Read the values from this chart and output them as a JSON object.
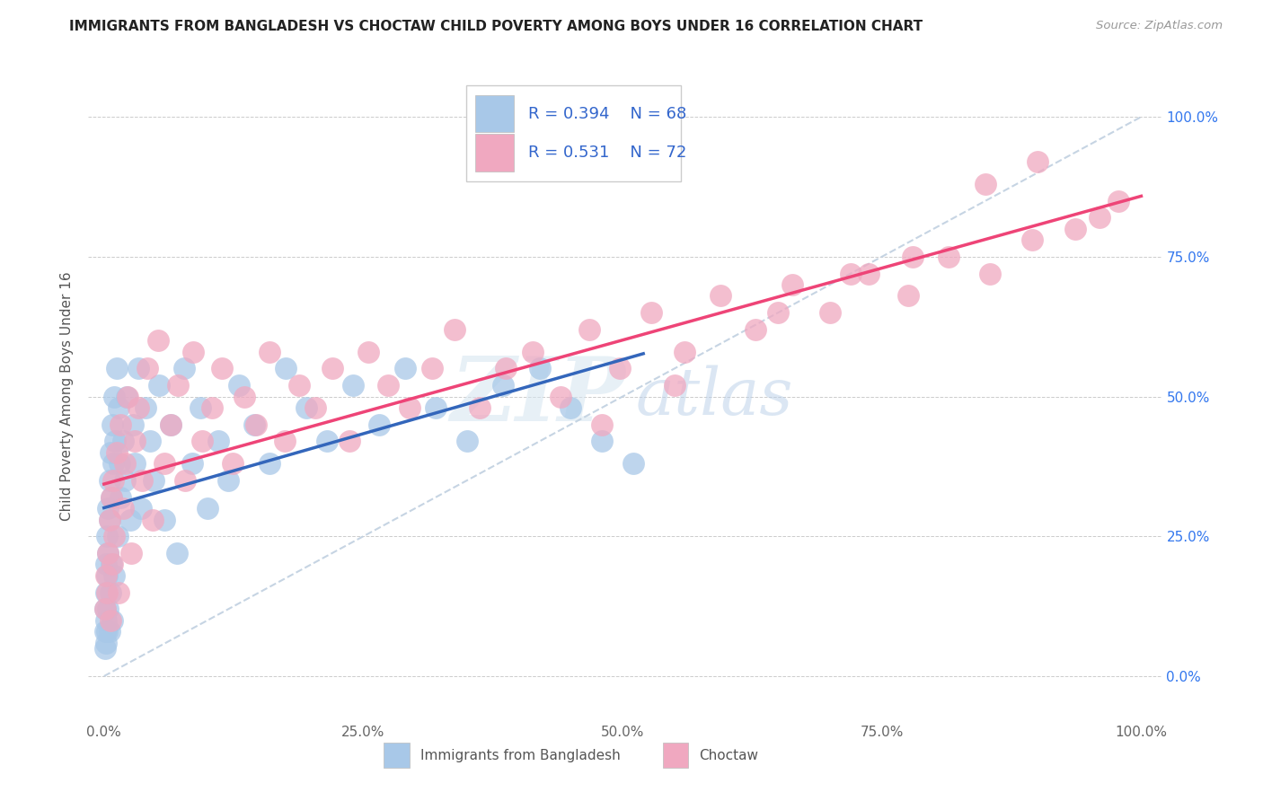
{
  "title": "IMMIGRANTS FROM BANGLADESH VS CHOCTAW CHILD POVERTY AMONG BOYS UNDER 16 CORRELATION CHART",
  "source": "Source: ZipAtlas.com",
  "ylabel": "Child Poverty Among Boys Under 16",
  "xlim": [
    -0.015,
    1.02
  ],
  "ylim": [
    -0.08,
    1.08
  ],
  "xtick_positions": [
    0.0,
    0.25,
    0.5,
    0.75,
    1.0
  ],
  "xticklabels": [
    "0.0%",
    "25.0%",
    "50.0%",
    "75.0%",
    "100.0%"
  ],
  "ytick_positions": [
    0.0,
    0.25,
    0.5,
    0.75,
    1.0
  ],
  "ytick_labels_right": [
    "0.0%",
    "25.0%",
    "50.0%",
    "75.0%",
    "100.0%"
  ],
  "bangladesh_color": "#a8c8e8",
  "choctaw_color": "#f0a8c0",
  "bangladesh_line_color": "#3366bb",
  "choctaw_line_color": "#ee4477",
  "diagonal_color": "#c0d0e0",
  "R_bangladesh": 0.394,
  "N_bangladesh": 68,
  "R_choctaw": 0.531,
  "N_choctaw": 72,
  "legend_label_1": "Immigrants from Bangladesh",
  "legend_label_2": "Choctaw",
  "watermark_zip": "ZIP",
  "watermark_atlas": "atlas",
  "background_color": "#ffffff",
  "bangladesh_x": [
    0.001,
    0.001,
    0.001,
    0.002,
    0.002,
    0.002,
    0.002,
    0.003,
    0.003,
    0.003,
    0.004,
    0.004,
    0.004,
    0.005,
    0.005,
    0.005,
    0.006,
    0.006,
    0.007,
    0.007,
    0.008,
    0.008,
    0.009,
    0.01,
    0.01,
    0.011,
    0.012,
    0.013,
    0.014,
    0.015,
    0.016,
    0.018,
    0.02,
    0.022,
    0.025,
    0.028,
    0.03,
    0.033,
    0.036,
    0.04,
    0.044,
    0.048,
    0.053,
    0.058,
    0.064,
    0.07,
    0.077,
    0.085,
    0.093,
    0.1,
    0.11,
    0.12,
    0.13,
    0.145,
    0.16,
    0.175,
    0.195,
    0.215,
    0.24,
    0.265,
    0.29,
    0.32,
    0.35,
    0.385,
    0.42,
    0.45,
    0.48,
    0.51
  ],
  "bangladesh_y": [
    0.08,
    0.12,
    0.05,
    0.15,
    0.1,
    0.2,
    0.06,
    0.18,
    0.25,
    0.08,
    0.3,
    0.12,
    0.22,
    0.35,
    0.08,
    0.28,
    0.4,
    0.15,
    0.32,
    0.2,
    0.1,
    0.45,
    0.38,
    0.5,
    0.18,
    0.42,
    0.55,
    0.25,
    0.48,
    0.38,
    0.32,
    0.42,
    0.35,
    0.5,
    0.28,
    0.45,
    0.38,
    0.55,
    0.3,
    0.48,
    0.42,
    0.35,
    0.52,
    0.28,
    0.45,
    0.22,
    0.55,
    0.38,
    0.48,
    0.3,
    0.42,
    0.35,
    0.52,
    0.45,
    0.38,
    0.55,
    0.48,
    0.42,
    0.52,
    0.45,
    0.55,
    0.48,
    0.42,
    0.52,
    0.55,
    0.48,
    0.42,
    0.38
  ],
  "choctaw_x": [
    0.001,
    0.002,
    0.003,
    0.004,
    0.005,
    0.006,
    0.007,
    0.008,
    0.009,
    0.01,
    0.012,
    0.014,
    0.016,
    0.018,
    0.02,
    0.023,
    0.026,
    0.03,
    0.033,
    0.037,
    0.042,
    0.047,
    0.052,
    0.058,
    0.064,
    0.071,
    0.078,
    0.086,
    0.095,
    0.104,
    0.114,
    0.124,
    0.135,
    0.147,
    0.16,
    0.174,
    0.188,
    0.204,
    0.22,
    0.237,
    0.255,
    0.274,
    0.295,
    0.316,
    0.338,
    0.362,
    0.387,
    0.413,
    0.44,
    0.468,
    0.497,
    0.528,
    0.56,
    0.594,
    0.628,
    0.664,
    0.7,
    0.737,
    0.775,
    0.814,
    0.854,
    0.895,
    0.936,
    0.978,
    0.85,
    0.78,
    0.65,
    0.72,
    0.9,
    0.96,
    0.48,
    0.55
  ],
  "choctaw_y": [
    0.12,
    0.18,
    0.15,
    0.22,
    0.28,
    0.1,
    0.32,
    0.2,
    0.35,
    0.25,
    0.4,
    0.15,
    0.45,
    0.3,
    0.38,
    0.5,
    0.22,
    0.42,
    0.48,
    0.35,
    0.55,
    0.28,
    0.6,
    0.38,
    0.45,
    0.52,
    0.35,
    0.58,
    0.42,
    0.48,
    0.55,
    0.38,
    0.5,
    0.45,
    0.58,
    0.42,
    0.52,
    0.48,
    0.55,
    0.42,
    0.58,
    0.52,
    0.48,
    0.55,
    0.62,
    0.48,
    0.55,
    0.58,
    0.5,
    0.62,
    0.55,
    0.65,
    0.58,
    0.68,
    0.62,
    0.7,
    0.65,
    0.72,
    0.68,
    0.75,
    0.72,
    0.78,
    0.8,
    0.85,
    0.88,
    0.75,
    0.65,
    0.72,
    0.92,
    0.82,
    0.45,
    0.52
  ]
}
